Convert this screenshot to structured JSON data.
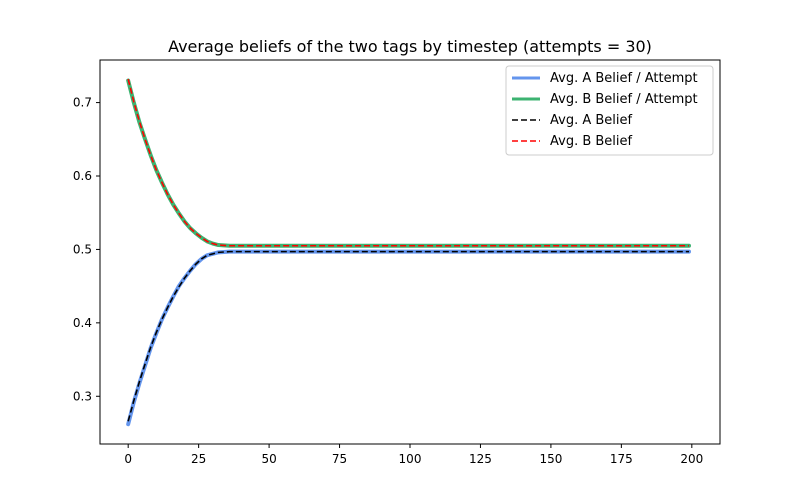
{
  "chart_data": {
    "type": "line",
    "title": "Average beliefs of the two tags by timestep (attempts = 30)",
    "xlabel": "",
    "ylabel": "",
    "xlim": [
      -10,
      210
    ],
    "ylim": [
      0.235,
      0.758
    ],
    "xticks": [
      0,
      25,
      50,
      75,
      100,
      125,
      150,
      175,
      200
    ],
    "yticks": [
      0.3,
      0.4,
      0.5,
      0.6,
      0.7
    ],
    "ytick_labels": [
      "0.3",
      "0.4",
      "0.5",
      "0.6",
      "0.7"
    ],
    "grid": false,
    "legend_position": "top-right",
    "x": [
      0,
      2,
      4,
      6,
      8,
      10,
      12,
      14,
      16,
      18,
      20,
      22,
      24,
      26,
      28,
      30,
      32,
      34,
      36,
      38,
      40,
      50,
      75,
      100,
      125,
      150,
      175,
      199
    ],
    "series": [
      {
        "name": "Avg. A Belief / Attempt",
        "style": "solid-thick",
        "color": "#6495ed",
        "values": [
          0.262,
          0.292,
          0.318,
          0.342,
          0.366,
          0.386,
          0.405,
          0.421,
          0.436,
          0.45,
          0.461,
          0.471,
          0.48,
          0.487,
          0.492,
          0.494,
          0.496,
          0.4965,
          0.497,
          0.497,
          0.497,
          0.497,
          0.497,
          0.497,
          0.497,
          0.497,
          0.497,
          0.497
        ]
      },
      {
        "name": "Avg. B Belief / Attempt",
        "style": "solid-thick",
        "color": "#3cb371",
        "values": [
          0.73,
          0.7,
          0.673,
          0.65,
          0.628,
          0.608,
          0.591,
          0.575,
          0.561,
          0.549,
          0.538,
          0.529,
          0.522,
          0.516,
          0.511,
          0.508,
          0.506,
          0.5055,
          0.505,
          0.505,
          0.505,
          0.505,
          0.505,
          0.505,
          0.505,
          0.505,
          0.505,
          0.505
        ]
      },
      {
        "name": "Avg. A Belief",
        "style": "dashed",
        "color": "#000000",
        "values": [
          0.266,
          0.294,
          0.32,
          0.344,
          0.367,
          0.387,
          0.405,
          0.421,
          0.436,
          0.449,
          0.461,
          0.471,
          0.48,
          0.487,
          0.492,
          0.494,
          0.496,
          0.4965,
          0.497,
          0.497,
          0.497,
          0.497,
          0.497,
          0.497,
          0.497,
          0.497,
          0.497,
          0.497
        ]
      },
      {
        "name": "Avg. B Belief",
        "style": "dashed",
        "color": "#ff0000",
        "values": [
          0.732,
          0.701,
          0.674,
          0.65,
          0.628,
          0.608,
          0.591,
          0.575,
          0.561,
          0.549,
          0.538,
          0.529,
          0.522,
          0.516,
          0.511,
          0.508,
          0.506,
          0.5055,
          0.505,
          0.505,
          0.505,
          0.505,
          0.505,
          0.505,
          0.505,
          0.505,
          0.505,
          0.505
        ]
      }
    ]
  }
}
